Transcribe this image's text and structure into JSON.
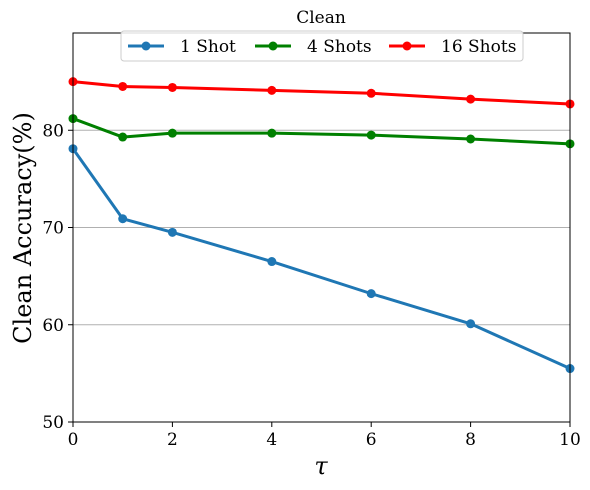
{
  "chart_data": {
    "type": "line",
    "title": "Clean",
    "xlabel": "τ",
    "ylabel": "Clean Accuracy(%)",
    "x": [
      0,
      1,
      2,
      4,
      6,
      8,
      10
    ],
    "xlim": [
      0,
      10
    ],
    "ylim": [
      50,
      90
    ],
    "xticks": [
      0,
      2,
      4,
      6,
      8,
      10
    ],
    "yticks": [
      50,
      60,
      70,
      80
    ],
    "grid": "horizontal",
    "legend": "top-center",
    "series": [
      {
        "name": "1 Shot",
        "color": "#1f77b4",
        "values": [
          78.1,
          70.9,
          69.5,
          66.5,
          63.2,
          60.1,
          55.5
        ]
      },
      {
        "name": "4 Shots",
        "color": "#008000",
        "values": [
          81.2,
          79.3,
          79.7,
          79.7,
          79.5,
          79.1,
          78.6
        ]
      },
      {
        "name": "16 Shots",
        "color": "#ff0000",
        "values": [
          85.0,
          84.5,
          84.4,
          84.1,
          83.8,
          83.2,
          82.7
        ]
      }
    ]
  }
}
